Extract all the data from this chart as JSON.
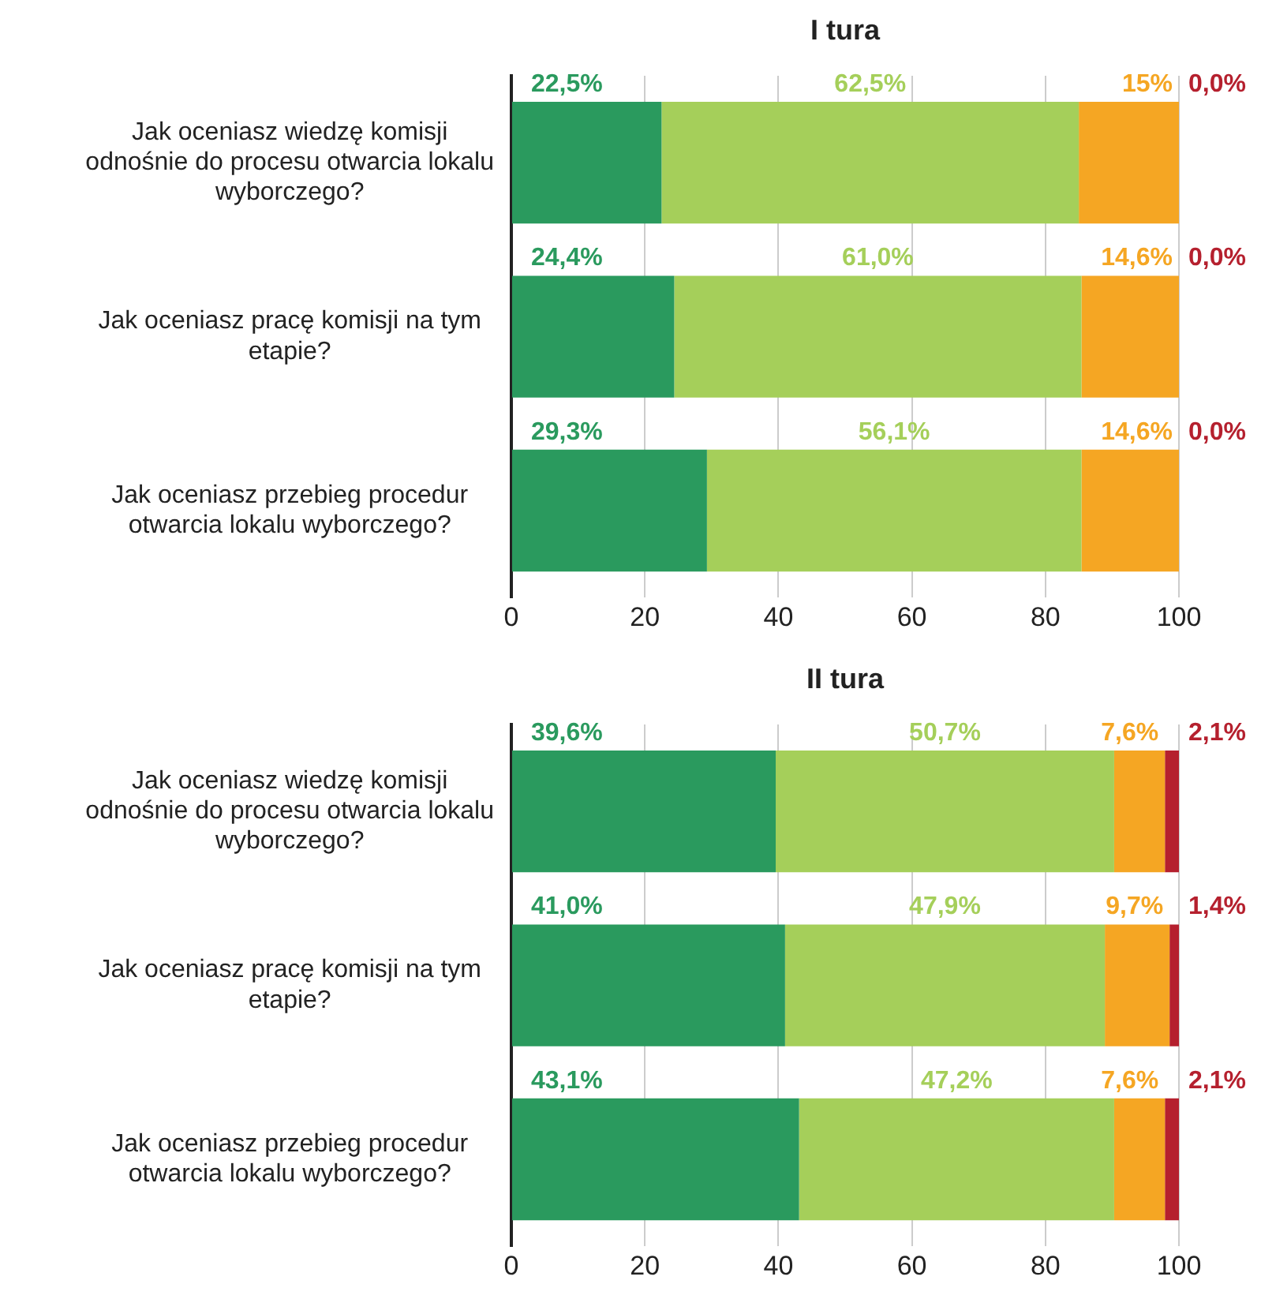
{
  "chart_data": [
    {
      "type": "bar",
      "orientation": "horizontal",
      "stacked": true,
      "title": "I tura",
      "categories": [
        "Jak oceniasz wiedzę komisji odnośnie do procesu otwarcia lokalu wyborczego?",
        "Jak oceniasz pracę komisji na tym etapie?",
        "Jak oceniasz przebieg procedur otwarcia lokalu wyborczego?"
      ],
      "xlim": [
        0,
        100
      ],
      "xticks": [
        0,
        20,
        40,
        60,
        80,
        100
      ],
      "grid": "x",
      "series": [
        {
          "color": "#2a9a5e",
          "values": [
            22.5,
            24.4,
            29.3
          ],
          "value_labels": [
            "22,5%",
            "24,4%",
            "29,3%"
          ]
        },
        {
          "color": "#a5cf5a",
          "values": [
            62.5,
            61.0,
            56.1
          ],
          "value_labels": [
            "62,5%",
            "61,0%",
            "56,1%"
          ]
        },
        {
          "color": "#f5a623",
          "values": [
            15,
            14.6,
            14.6
          ],
          "value_labels": [
            "15%",
            "14,6%",
            "14,6%"
          ]
        },
        {
          "color": "#b5202e",
          "values": [
            0,
            0,
            0
          ],
          "value_labels": [
            "0,0%",
            "0,0%",
            "0,0%"
          ]
        }
      ]
    },
    {
      "type": "bar",
      "orientation": "horizontal",
      "stacked": true,
      "title": "II tura",
      "categories": [
        "Jak oceniasz wiedzę komisji odnośnie do procesu otwarcia lokalu wyborczego?",
        "Jak oceniasz pracę komisji na tym etapie?",
        "Jak oceniasz przebieg procedur otwarcia lokalu wyborczego?"
      ],
      "xlim": [
        0,
        100
      ],
      "xticks": [
        0,
        20,
        40,
        60,
        80,
        100
      ],
      "grid": "x",
      "series": [
        {
          "color": "#2a9a5e",
          "values": [
            39.6,
            41.0,
            43.1
          ],
          "value_labels": [
            "39,6%",
            "41,0%",
            "43,1%"
          ]
        },
        {
          "color": "#a5cf5a",
          "values": [
            50.7,
            47.9,
            47.2
          ],
          "value_labels": [
            "50,7%",
            "47,9%",
            "47,2%"
          ]
        },
        {
          "color": "#f5a623",
          "values": [
            7.6,
            9.7,
            7.6
          ],
          "value_labels": [
            "7,6%",
            "9,7%",
            "7,6%"
          ]
        },
        {
          "color": "#b5202e",
          "values": [
            2.1,
            1.4,
            2.1
          ],
          "value_labels": [
            "2,1%",
            "1,4%",
            "2,1%"
          ]
        }
      ]
    }
  ]
}
